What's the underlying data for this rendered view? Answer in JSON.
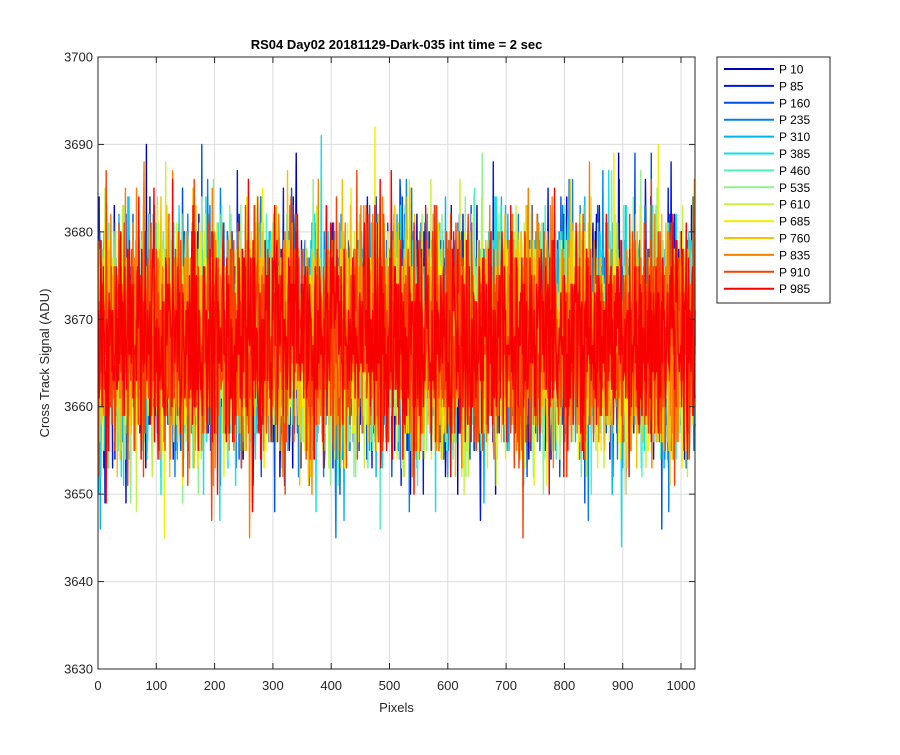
{
  "chart_data": {
    "type": "line",
    "title": "RS04 Day02 20181129-Dark-035 int time = 2 sec",
    "xlabel": "Pixels",
    "ylabel": "Cross Track Signal (ADU)",
    "xlim": [
      0,
      1024
    ],
    "ylim": [
      3630,
      3700
    ],
    "xticks": [
      0,
      100,
      200,
      300,
      400,
      500,
      600,
      700,
      800,
      900,
      1000
    ],
    "yticks": [
      3630,
      3640,
      3650,
      3660,
      3670,
      3680,
      3690,
      3700
    ],
    "grid": true,
    "legend_position": "outside-top-right",
    "num_points": 1024,
    "noise_model": {
      "mean": 3668,
      "sigma": 6.5
    },
    "series": [
      {
        "name": "P 10",
        "color": "#0000b8"
      },
      {
        "name": "P 85",
        "color": "#0018d8"
      },
      {
        "name": "P 160",
        "color": "#0050e0"
      },
      {
        "name": "P 235",
        "color": "#0080e8"
      },
      {
        "name": "P 310",
        "color": "#00b4f0"
      },
      {
        "name": "P 385",
        "color": "#10e0e8"
      },
      {
        "name": "P 460",
        "color": "#50f0c0"
      },
      {
        "name": "P 535",
        "color": "#90f090"
      },
      {
        "name": "P 610",
        "color": "#c8f040"
      },
      {
        "name": "P 685",
        "color": "#f0f000"
      },
      {
        "name": "P 760",
        "color": "#f8c000"
      },
      {
        "name": "P 835",
        "color": "#f88000"
      },
      {
        "name": "P 910",
        "color": "#f84000"
      },
      {
        "name": "P 985",
        "color": "#f80000"
      }
    ]
  }
}
